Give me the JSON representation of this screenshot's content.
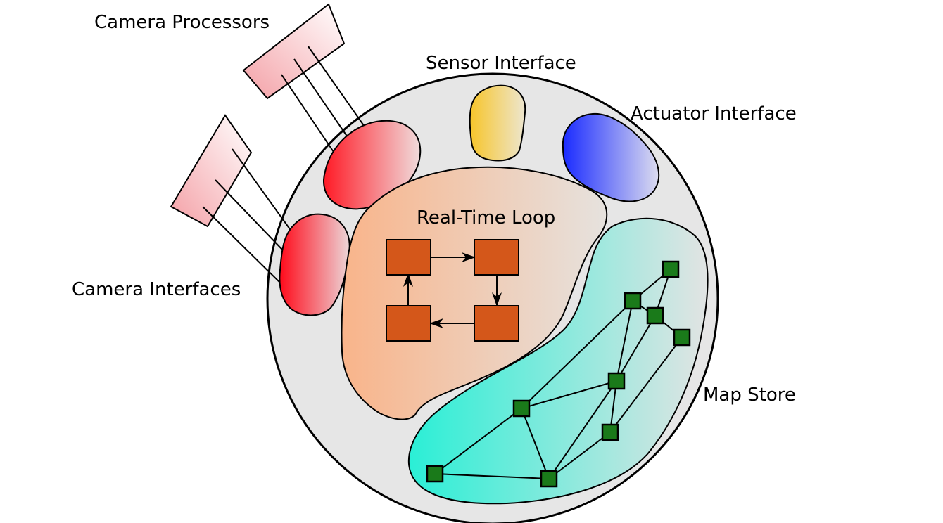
{
  "labels": {
    "camera_processors": "Camera Processors",
    "sensor_interface": "Sensor Interface",
    "actuator_interface": "Actuator Interface",
    "real_time_loop": "Real-Time Loop",
    "camera_interfaces": "Camera Interfaces",
    "map_store": "Map Store"
  },
  "colors": {
    "outer_circle": "#e6e6e6",
    "camera_red": "#ff1a26",
    "sensor_yellow": "#f7c52a",
    "actuator_blue": "#1a2bff",
    "loop_orange_left": "#f9b58a",
    "loop_orange_right": "#e6e3e0",
    "loop_box": "#d4571a",
    "map_teal": "#2aefd6",
    "map_node": "#1a7a1a",
    "processor_pink": "#f4a1a6"
  },
  "map_graph": {
    "nodes": [
      "n1",
      "n2",
      "n3",
      "n4",
      "n5",
      "n6",
      "n7",
      "n8",
      "n9"
    ],
    "edges": [
      [
        "n1",
        "n2"
      ],
      [
        "n1",
        "n3"
      ],
      [
        "n2",
        "n3"
      ],
      [
        "n2",
        "n5"
      ],
      [
        "n2",
        "n6"
      ],
      [
        "n3",
        "n4"
      ],
      [
        "n3",
        "n5"
      ],
      [
        "n4",
        "n7"
      ],
      [
        "n5",
        "n6"
      ],
      [
        "n5",
        "n8"
      ],
      [
        "n5",
        "n7"
      ],
      [
        "n6",
        "n9"
      ],
      [
        "n6",
        "n8"
      ],
      [
        "n7",
        "n8"
      ],
      [
        "n8",
        "n9"
      ]
    ]
  }
}
